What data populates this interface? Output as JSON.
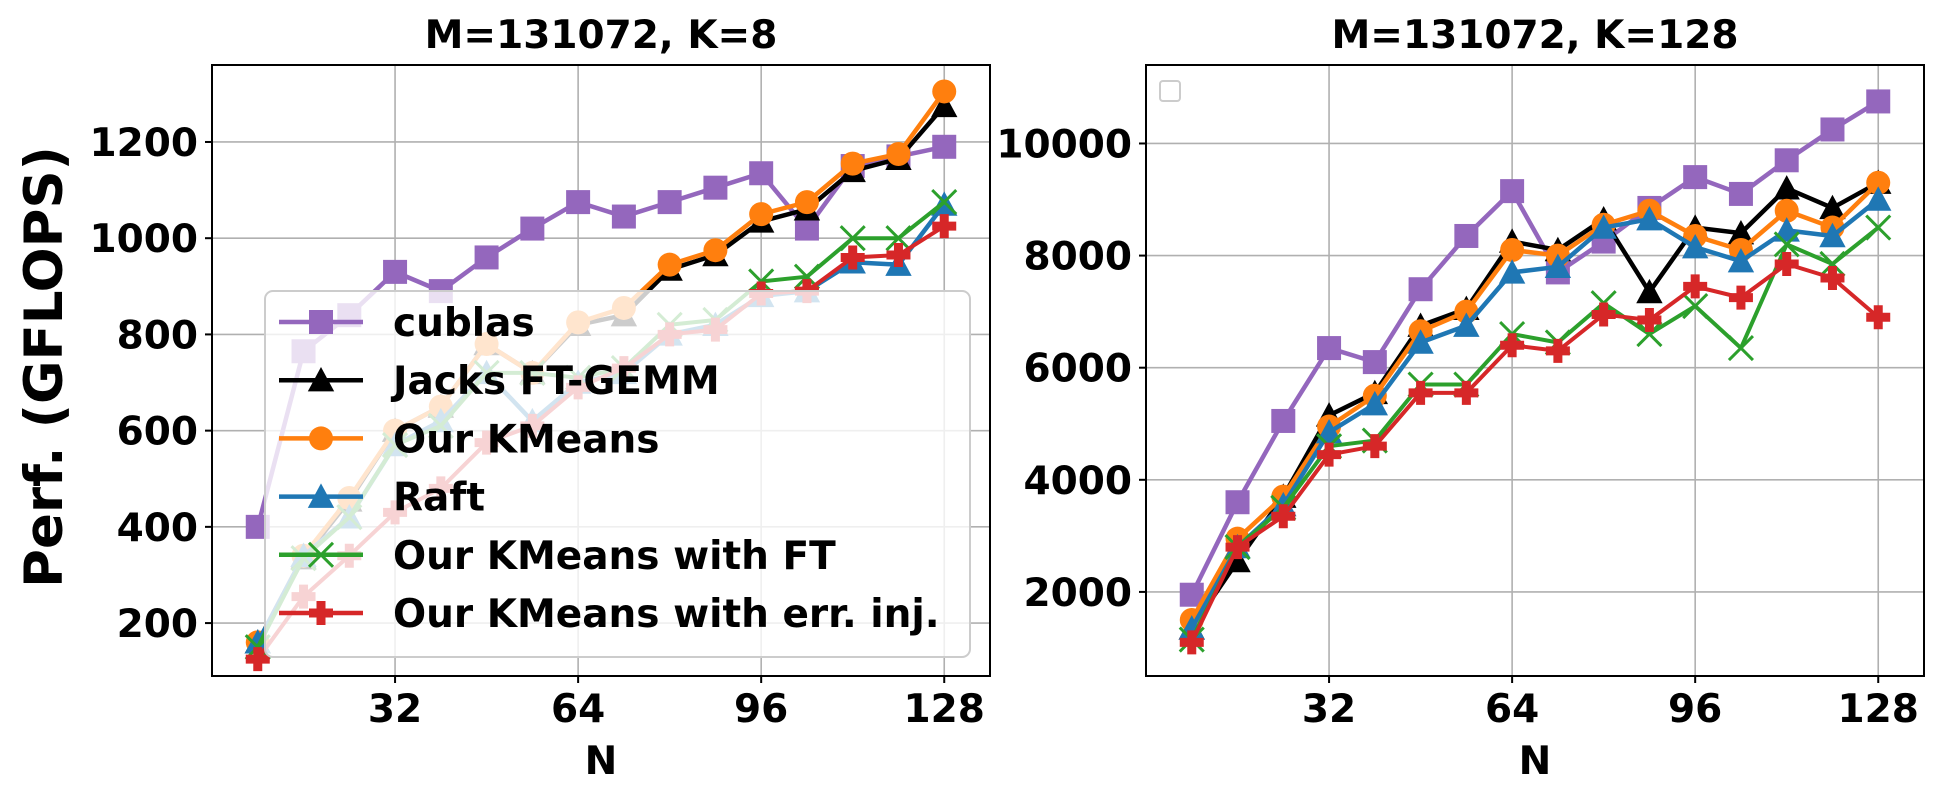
{
  "figure": {
    "ylabel": "Perf. (GFLOPS)"
  },
  "series_styles": [
    {
      "name": "cublas",
      "color": "#9467bd",
      "marker": "square"
    },
    {
      "name": "Jacks FT-GEMM",
      "color": "#000000",
      "marker": "triangle"
    },
    {
      "name": "Our KMeans",
      "color": "#ff7f0e",
      "marker": "circle"
    },
    {
      "name": "Raft",
      "color": "#1f77b4",
      "marker": "triangle"
    },
    {
      "name": "Our KMeans with FT",
      "color": "#2ca02c",
      "marker": "x"
    },
    {
      "name": "Our KMeans with err. inj.",
      "color": "#d62728",
      "marker": "plus"
    }
  ],
  "chart_data": [
    {
      "type": "line",
      "title": "M=131072, K=8",
      "xlabel": "N",
      "ylabel": "Perf. (GFLOPS)",
      "xlim": [
        0,
        136
      ],
      "ylim": [
        90,
        1360
      ],
      "xticks": [
        32,
        64,
        96,
        128
      ],
      "yticks": [
        200,
        400,
        600,
        800,
        1000,
        1200
      ],
      "grid": true,
      "legend": {
        "placement": "lower-right",
        "entries": [
          "cublas",
          "Jacks FT-GEMM",
          "Our KMeans",
          "Raft",
          "Our KMeans with FT",
          "Our KMeans with err. inj."
        ]
      },
      "x": [
        8,
        16,
        24,
        32,
        40,
        48,
        56,
        64,
        72,
        80,
        88,
        96,
        104,
        112,
        120,
        128
      ],
      "series": [
        {
          "name": "cublas",
          "values": [
            400,
            765,
            840,
            930,
            890,
            960,
            1020,
            1075,
            1045,
            1075,
            1105,
            1135,
            1020,
            1150,
            1170,
            1190
          ]
        },
        {
          "name": "Jacks FT-GEMM",
          "values": [
            160,
            335,
            455,
            600,
            650,
            780,
            720,
            820,
            840,
            935,
            965,
            1035,
            1060,
            1140,
            1165,
            1275
          ]
        },
        {
          "name": "Our KMeans",
          "values": [
            160,
            340,
            460,
            600,
            650,
            780,
            720,
            825,
            855,
            945,
            975,
            1050,
            1075,
            1155,
            1175,
            1305
          ]
        },
        {
          "name": "Raft",
          "values": [
            160,
            340,
            420,
            570,
            620,
            720,
            620,
            700,
            720,
            800,
            820,
            880,
            890,
            950,
            945,
            1070
          ]
        },
        {
          "name": "Our KMeans with FT",
          "values": [
            150,
            335,
            420,
            570,
            610,
            720,
            720,
            710,
            730,
            820,
            830,
            910,
            920,
            1000,
            1000,
            1075
          ]
        },
        {
          "name": "Our KMeans with err. inj.",
          "values": [
            125,
            255,
            340,
            430,
            480,
            575,
            610,
            690,
            730,
            800,
            810,
            885,
            890,
            960,
            965,
            1025
          ]
        }
      ]
    },
    {
      "type": "line",
      "title": "M=131072, K=128",
      "xlabel": "N",
      "ylabel": "",
      "xlim": [
        0,
        136
      ],
      "ylim": [
        500,
        11400
      ],
      "xticks": [
        32,
        64,
        96,
        128
      ],
      "yticks": [
        2000,
        4000,
        6000,
        8000,
        10000
      ],
      "grid": true,
      "legend": {
        "placement": "top-left",
        "entries": []
      },
      "x": [
        8,
        16,
        24,
        32,
        40,
        48,
        56,
        64,
        72,
        80,
        88,
        96,
        104,
        112,
        120,
        128
      ],
      "series": [
        {
          "name": "cublas",
          "values": [
            1950,
            3600,
            5050,
            6350,
            6100,
            7400,
            8350,
            9150,
            7700,
            8250,
            8850,
            9400,
            9100,
            9700,
            10250,
            10750
          ]
        },
        {
          "name": "Jacks FT-GEMM",
          "values": [
            1350,
            2550,
            3700,
            5150,
            5550,
            6750,
            7050,
            8250,
            8100,
            8650,
            7350,
            8500,
            8400,
            9200,
            8850,
            9300
          ]
        },
        {
          "name": "Our KMeans",
          "values": [
            1500,
            2950,
            3700,
            4950,
            5500,
            6650,
            7000,
            8100,
            8000,
            8550,
            8800,
            8350,
            8100,
            8800,
            8500,
            9300
          ]
        },
        {
          "name": "Raft",
          "values": [
            1350,
            2800,
            3550,
            4850,
            5350,
            6450,
            6750,
            7700,
            7800,
            8500,
            8650,
            8150,
            7900,
            8450,
            8350,
            9000
          ]
        },
        {
          "name": "Our KMeans with FT",
          "values": [
            1150,
            2800,
            3500,
            4600,
            4700,
            5700,
            5700,
            6600,
            6450,
            7150,
            6600,
            7100,
            6350,
            8200,
            7850,
            8500
          ]
        },
        {
          "name": "Our KMeans with err. inj.",
          "values": [
            1100,
            2800,
            3350,
            4450,
            4600,
            5550,
            5550,
            6400,
            6300,
            6950,
            6850,
            7450,
            7250,
            7850,
            7600,
            6900
          ]
        }
      ]
    }
  ]
}
